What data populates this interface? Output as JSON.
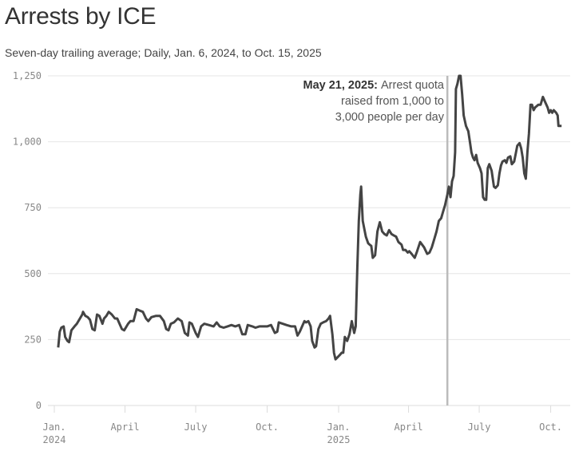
{
  "title": "Arrests by ICE",
  "subtitle": "Seven-day trailing average; Daily, Jan. 6, 2024, to Oct. 15, 2025",
  "chart_data": {
    "type": "line",
    "title": "Arrests by ICE",
    "subtitle": "Seven-day trailing average; Daily, Jan. 6, 2024, to Oct. 15, 2025",
    "xlabel": "",
    "ylabel": "",
    "ylim": [
      0,
      1250
    ],
    "xlim": [
      "2024-01-01",
      "2025-10-20"
    ],
    "grid": true,
    "line_color": "#444444",
    "y_ticks": [
      {
        "value": 0,
        "label": "0"
      },
      {
        "value": 250,
        "label": "250"
      },
      {
        "value": 500,
        "label": "500"
      },
      {
        "value": 750,
        "label": "750"
      },
      {
        "value": 1000,
        "label": "1,000"
      },
      {
        "value": 1250,
        "label": "1,250"
      }
    ],
    "x_ticks": [
      {
        "date": "2024-01-01",
        "label": "Jan.",
        "label2": "2024"
      },
      {
        "date": "2024-04-01",
        "label": "April",
        "label2": ""
      },
      {
        "date": "2024-07-01",
        "label": "July",
        "label2": ""
      },
      {
        "date": "2024-10-01",
        "label": "Oct.",
        "label2": ""
      },
      {
        "date": "2025-01-01",
        "label": "Jan.",
        "label2": "2025"
      },
      {
        "date": "2025-04-01",
        "label": "April",
        "label2": ""
      },
      {
        "date": "2025-07-01",
        "label": "July",
        "label2": ""
      },
      {
        "date": "2025-10-01",
        "label": "Oct.",
        "label2": ""
      }
    ],
    "annotation": {
      "date": "2025-05-21",
      "bold": "May 21, 2025:",
      "line1": "Arrest quota",
      "line2": "raised from 1,000 to",
      "line3": "3,000 people per day",
      "rule_color": "#bbbbbb"
    },
    "series": [
      {
        "points": [
          [
            "2024-01-06",
            220
          ],
          [
            "2024-01-08",
            280
          ],
          [
            "2024-01-10",
            295
          ],
          [
            "2024-01-13",
            300
          ],
          [
            "2024-01-15",
            260
          ],
          [
            "2024-01-18",
            245
          ],
          [
            "2024-01-20",
            240
          ],
          [
            "2024-01-23",
            285
          ],
          [
            "2024-01-27",
            300
          ],
          [
            "2024-01-30",
            310
          ],
          [
            "2024-02-03",
            330
          ],
          [
            "2024-02-06",
            345
          ],
          [
            "2024-02-07",
            355
          ],
          [
            "2024-02-10",
            340
          ],
          [
            "2024-02-13",
            335
          ],
          [
            "2024-02-16",
            325
          ],
          [
            "2024-02-19",
            290
          ],
          [
            "2024-02-22",
            285
          ],
          [
            "2024-02-25",
            345
          ],
          [
            "2024-02-28",
            340
          ],
          [
            "2024-03-03",
            310
          ],
          [
            "2024-03-05",
            330
          ],
          [
            "2024-03-08",
            340
          ],
          [
            "2024-03-11",
            355
          ],
          [
            "2024-03-15",
            345
          ],
          [
            "2024-03-19",
            330
          ],
          [
            "2024-03-22",
            330
          ],
          [
            "2024-03-25",
            310
          ],
          [
            "2024-03-28",
            290
          ],
          [
            "2024-03-31",
            285
          ],
          [
            "2024-04-05",
            310
          ],
          [
            "2024-04-08",
            320
          ],
          [
            "2024-04-12",
            320
          ],
          [
            "2024-04-16",
            365
          ],
          [
            "2024-04-20",
            360
          ],
          [
            "2024-04-24",
            355
          ],
          [
            "2024-04-28",
            330
          ],
          [
            "2024-05-01",
            320
          ],
          [
            "2024-05-05",
            335
          ],
          [
            "2024-05-11",
            340
          ],
          [
            "2024-05-16",
            340
          ],
          [
            "2024-05-21",
            320
          ],
          [
            "2024-05-24",
            290
          ],
          [
            "2024-05-27",
            285
          ],
          [
            "2024-05-30",
            310
          ],
          [
            "2024-06-03",
            315
          ],
          [
            "2024-06-08",
            330
          ],
          [
            "2024-06-13",
            320
          ],
          [
            "2024-06-17",
            275
          ],
          [
            "2024-06-21",
            265
          ],
          [
            "2024-06-23",
            315
          ],
          [
            "2024-06-26",
            310
          ],
          [
            "2024-07-01",
            275
          ],
          [
            "2024-07-04",
            260
          ],
          [
            "2024-07-08",
            300
          ],
          [
            "2024-07-12",
            310
          ],
          [
            "2024-07-18",
            305
          ],
          [
            "2024-07-24",
            300
          ],
          [
            "2024-07-28",
            315
          ],
          [
            "2024-08-01",
            300
          ],
          [
            "2024-08-06",
            295
          ],
          [
            "2024-08-11",
            300
          ],
          [
            "2024-08-16",
            305
          ],
          [
            "2024-08-21",
            300
          ],
          [
            "2024-08-26",
            305
          ],
          [
            "2024-08-30",
            270
          ],
          [
            "2024-09-03",
            270
          ],
          [
            "2024-09-06",
            305
          ],
          [
            "2024-09-12",
            300
          ],
          [
            "2024-09-16",
            295
          ],
          [
            "2024-09-21",
            300
          ],
          [
            "2024-09-26",
            300
          ],
          [
            "2024-10-01",
            300
          ],
          [
            "2024-10-06",
            305
          ],
          [
            "2024-10-11",
            275
          ],
          [
            "2024-10-14",
            280
          ],
          [
            "2024-10-16",
            315
          ],
          [
            "2024-10-21",
            310
          ],
          [
            "2024-10-26",
            305
          ],
          [
            "2024-11-01",
            300
          ],
          [
            "2024-11-06",
            300
          ],
          [
            "2024-11-09",
            265
          ],
          [
            "2024-11-12",
            280
          ],
          [
            "2024-11-15",
            300
          ],
          [
            "2024-11-18",
            320
          ],
          [
            "2024-11-20",
            315
          ],
          [
            "2024-11-23",
            320
          ],
          [
            "2024-11-26",
            300
          ],
          [
            "2024-11-28",
            245
          ],
          [
            "2024-12-01",
            220
          ],
          [
            "2024-12-03",
            225
          ],
          [
            "2024-12-06",
            290
          ],
          [
            "2024-12-09",
            310
          ],
          [
            "2024-12-12",
            315
          ],
          [
            "2024-12-16",
            320
          ],
          [
            "2024-12-19",
            330
          ],
          [
            "2024-12-21",
            340
          ],
          [
            "2024-12-24",
            270
          ],
          [
            "2024-12-26",
            200
          ],
          [
            "2024-12-28",
            175
          ],
          [
            "2025-01-02",
            190
          ],
          [
            "2025-01-05",
            200
          ],
          [
            "2025-01-07",
            200
          ],
          [
            "2025-01-09",
            260
          ],
          [
            "2025-01-12",
            245
          ],
          [
            "2025-01-15",
            270
          ],
          [
            "2025-01-18",
            320
          ],
          [
            "2025-01-21",
            275
          ],
          [
            "2025-01-23",
            300
          ],
          [
            "2025-01-25",
            520
          ],
          [
            "2025-01-27",
            700
          ],
          [
            "2025-01-29",
            800
          ],
          [
            "2025-01-30",
            830
          ],
          [
            "2025-02-01",
            700
          ],
          [
            "2025-02-05",
            640
          ],
          [
            "2025-02-08",
            615
          ],
          [
            "2025-02-10",
            610
          ],
          [
            "2025-02-12",
            605
          ],
          [
            "2025-02-14",
            560
          ],
          [
            "2025-02-17",
            570
          ],
          [
            "2025-02-20",
            660
          ],
          [
            "2025-02-23",
            695
          ],
          [
            "2025-02-26",
            660
          ],
          [
            "2025-03-01",
            650
          ],
          [
            "2025-03-04",
            645
          ],
          [
            "2025-03-07",
            665
          ],
          [
            "2025-03-10",
            650
          ],
          [
            "2025-03-13",
            645
          ],
          [
            "2025-03-16",
            640
          ],
          [
            "2025-03-19",
            620
          ],
          [
            "2025-03-23",
            610
          ],
          [
            "2025-03-25",
            590
          ],
          [
            "2025-03-28",
            590
          ],
          [
            "2025-03-31",
            580
          ],
          [
            "2025-04-02",
            585
          ],
          [
            "2025-04-05",
            575
          ],
          [
            "2025-04-09",
            560
          ],
          [
            "2025-04-12",
            585
          ],
          [
            "2025-04-16",
            620
          ],
          [
            "2025-04-21",
            600
          ],
          [
            "2025-04-25",
            575
          ],
          [
            "2025-04-28",
            580
          ],
          [
            "2025-05-01",
            600
          ],
          [
            "2025-05-04",
            630
          ],
          [
            "2025-05-07",
            660
          ],
          [
            "2025-05-10",
            700
          ],
          [
            "2025-05-13",
            710
          ],
          [
            "2025-05-16",
            740
          ],
          [
            "2025-05-18",
            760
          ],
          [
            "2025-05-21",
            800
          ],
          [
            "2025-05-23",
            830
          ],
          [
            "2025-05-25",
            790
          ],
          [
            "2025-05-27",
            850
          ],
          [
            "2025-05-29",
            870
          ],
          [
            "2025-05-31",
            960
          ],
          [
            "2025-06-01",
            1200
          ],
          [
            "2025-06-03",
            1220
          ],
          [
            "2025-06-05",
            1250
          ],
          [
            "2025-06-07",
            1250
          ],
          [
            "2025-06-09",
            1180
          ],
          [
            "2025-06-11",
            1100
          ],
          [
            "2025-06-14",
            1060
          ],
          [
            "2025-06-17",
            1040
          ],
          [
            "2025-06-19",
            1000
          ],
          [
            "2025-06-21",
            960
          ],
          [
            "2025-06-23",
            940
          ],
          [
            "2025-06-25",
            930
          ],
          [
            "2025-06-27",
            950
          ],
          [
            "2025-06-29",
            920
          ],
          [
            "2025-07-02",
            900
          ],
          [
            "2025-07-04",
            880
          ],
          [
            "2025-07-06",
            790
          ],
          [
            "2025-07-08",
            780
          ],
          [
            "2025-07-10",
            780
          ],
          [
            "2025-07-12",
            900
          ],
          [
            "2025-07-14",
            915
          ],
          [
            "2025-07-17",
            890
          ],
          [
            "2025-07-20",
            830
          ],
          [
            "2025-07-22",
            825
          ],
          [
            "2025-07-25",
            835
          ],
          [
            "2025-07-27",
            880
          ],
          [
            "2025-07-29",
            910
          ],
          [
            "2025-07-31",
            925
          ],
          [
            "2025-08-03",
            930
          ],
          [
            "2025-08-05",
            920
          ],
          [
            "2025-08-07",
            940
          ],
          [
            "2025-08-10",
            945
          ],
          [
            "2025-08-12",
            915
          ],
          [
            "2025-08-15",
            925
          ],
          [
            "2025-08-17",
            955
          ],
          [
            "2025-08-19",
            985
          ],
          [
            "2025-08-22",
            995
          ],
          [
            "2025-08-24",
            975
          ],
          [
            "2025-08-26",
            940
          ],
          [
            "2025-08-28",
            880
          ],
          [
            "2025-08-30",
            860
          ],
          [
            "2025-09-01",
            960
          ],
          [
            "2025-09-03",
            1030
          ],
          [
            "2025-09-05",
            1140
          ],
          [
            "2025-09-07",
            1140
          ],
          [
            "2025-09-09",
            1120
          ],
          [
            "2025-09-11",
            1130
          ],
          [
            "2025-09-15",
            1140
          ],
          [
            "2025-09-18",
            1140
          ],
          [
            "2025-09-21",
            1170
          ],
          [
            "2025-09-24",
            1150
          ],
          [
            "2025-09-27",
            1130
          ],
          [
            "2025-09-29",
            1110
          ],
          [
            "2025-10-01",
            1120
          ],
          [
            "2025-10-03",
            1110
          ],
          [
            "2025-10-05",
            1120
          ],
          [
            "2025-10-08",
            1110
          ],
          [
            "2025-10-10",
            1100
          ],
          [
            "2025-10-11",
            1060
          ],
          [
            "2025-10-15",
            1060
          ]
        ]
      }
    ]
  }
}
